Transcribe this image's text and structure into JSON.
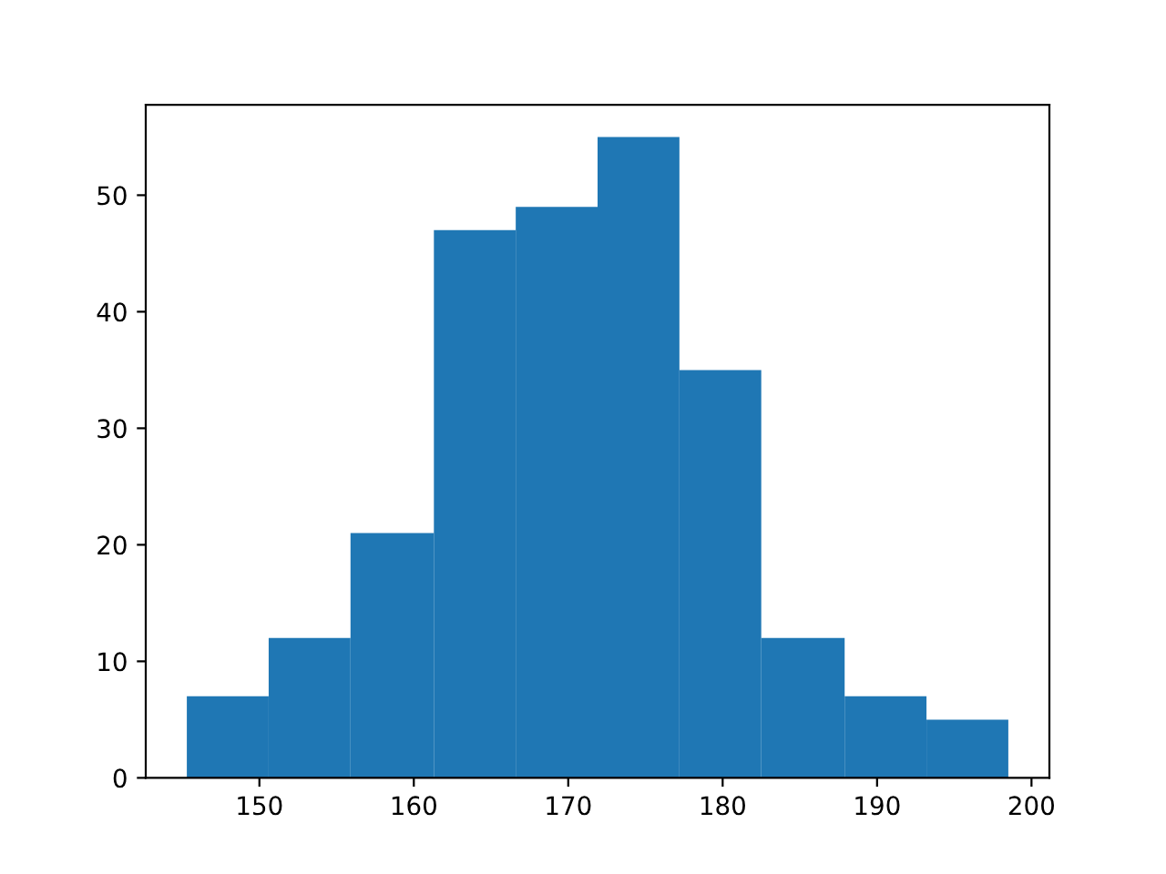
{
  "chart_data": {
    "type": "histogram",
    "bins": [
      145.3,
      150.6,
      155.9,
      161.3,
      166.6,
      171.9,
      177.2,
      182.5,
      187.9,
      193.2,
      198.5
    ],
    "values": [
      7,
      12,
      21,
      47,
      49,
      55,
      35,
      12,
      7,
      5
    ],
    "color": "#1f77b4",
    "xlim": [
      142.64,
      201.16
    ],
    "xticks": [
      150,
      160,
      170,
      180,
      190,
      200
    ],
    "ylim": [
      0,
      57.75
    ],
    "yticks": [
      0,
      10,
      20,
      30,
      40,
      50
    ],
    "grid": false,
    "legend": false
  }
}
